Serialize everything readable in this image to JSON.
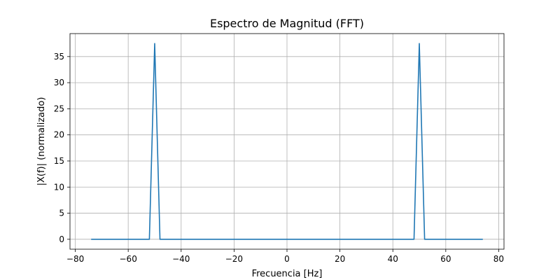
{
  "chart_data": {
    "type": "line",
    "title": "Espectro de Magnitud (FFT)",
    "xlabel": "Frecuencia [Hz]",
    "ylabel": "|X(f)| (normalizado)",
    "xlim": [
      -82,
      82
    ],
    "ylim": [
      -1.9,
      39.4
    ],
    "xticks": [
      -80,
      -60,
      -40,
      -20,
      0,
      20,
      40,
      60,
      80
    ],
    "xtick_labels": [
      "−80",
      "−60",
      "−40",
      "−20",
      "0",
      "20",
      "40",
      "60",
      "80"
    ],
    "yticks": [
      0,
      5,
      10,
      15,
      20,
      25,
      30,
      35
    ],
    "ytick_labels": [
      "0",
      "5",
      "10",
      "15",
      "20",
      "25",
      "30",
      "35"
    ],
    "grid": true,
    "series": [
      {
        "color": "#1f77b4",
        "x": [
          -74,
          -52,
          -50,
          -48,
          48,
          50,
          52,
          74
        ],
        "y": [
          0,
          0,
          37.5,
          0,
          0,
          37.5,
          0,
          0
        ]
      }
    ]
  }
}
